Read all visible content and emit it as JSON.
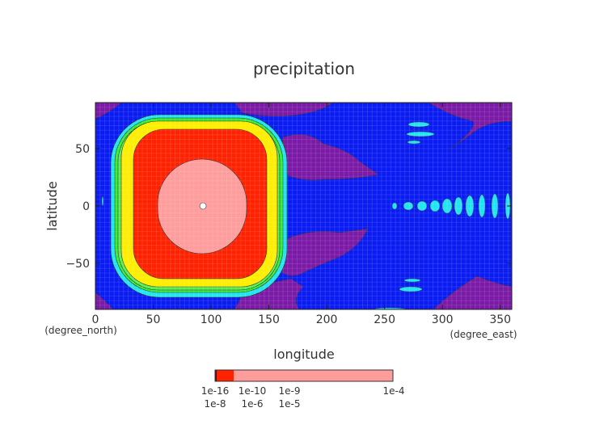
{
  "chart_data": {
    "type": "heatmap",
    "subtype": "filled-contour",
    "title": "precipitation",
    "xlabel": "longitude",
    "ylabel": "latitude",
    "x_unit_label": "(degree_east)",
    "y_unit_label": "(degree_north)",
    "xlim": [
      0,
      360
    ],
    "ylim": [
      -90,
      90
    ],
    "x_ticks": [
      0,
      50,
      100,
      150,
      200,
      250,
      300,
      350
    ],
    "y_ticks": [
      50,
      0,
      -50
    ],
    "grid": false,
    "colors": {
      "lowest": "#7a1aa6",
      "low": "#0a1cf2",
      "cyan": "#22e4f0",
      "green": "#33f033",
      "yellow": "#ffee00",
      "red": "#ff2200",
      "highest": "#ff9c9c"
    },
    "colorbar": {
      "low_labels": [
        "1e-16",
        "1e-10",
        "1e-9",
        "1e-8",
        "1e-6",
        "1e-5"
      ],
      "high_label": "1e-4",
      "placement": "bottom"
    }
  }
}
